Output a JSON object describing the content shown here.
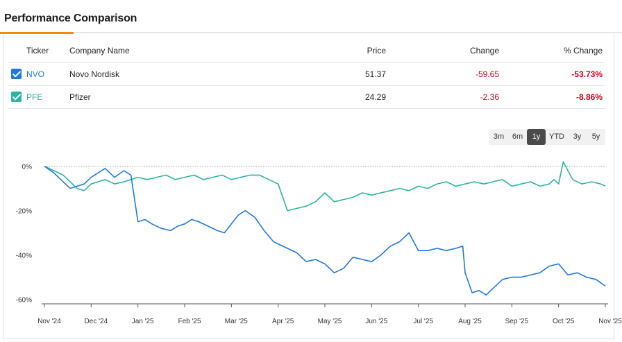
{
  "header": {
    "title": "Performance Comparison"
  },
  "table": {
    "columns": [
      "Ticker",
      "Company Name",
      "Price",
      "Change",
      "% Change"
    ],
    "rows": [
      {
        "ticker": "NVO",
        "name": "Novo Nordisk",
        "price": "51.37",
        "change": "-59.65",
        "pct_change": "-53.73%",
        "color": "#1f77e0",
        "checked": true
      },
      {
        "ticker": "PFE",
        "name": "Pfizer",
        "price": "24.29",
        "change": "-2.36",
        "pct_change": "-8.86%",
        "color": "#2bb3a3",
        "checked": true
      }
    ]
  },
  "ranges": {
    "options": [
      "3m",
      "6m",
      "1y",
      "YTD",
      "3y",
      "5y"
    ],
    "selected": "1y"
  },
  "chart_data": {
    "type": "line",
    "ylim": [
      -62,
      3
    ],
    "y_ticks": [
      "0%",
      "-20%",
      "-40%",
      "-60%"
    ],
    "y_tick_values": [
      0,
      -20,
      -40,
      -60
    ],
    "x_ticks": [
      "Nov '24",
      "Dec '24",
      "Jan '25",
      "Feb '25",
      "Mar '25",
      "Apr '25",
      "May '25",
      "Jun '25",
      "Jul '25",
      "Aug '25",
      "Sep '25",
      "Oct '25",
      "Nov '25"
    ],
    "series": [
      {
        "name": "NVO",
        "color": "#1f77e0",
        "x": [
          0.0,
          0.2,
          0.35,
          0.55,
          0.7,
          0.85,
          1.0,
          1.15,
          1.3,
          1.5,
          1.7,
          1.85,
          2.0,
          2.15,
          2.3,
          2.5,
          2.7,
          2.85,
          3.0,
          3.15,
          3.3,
          3.5,
          3.7,
          3.85,
          4.0,
          4.15,
          4.3,
          4.5,
          4.7,
          4.9,
          5.0,
          5.2,
          5.4,
          5.6,
          5.8,
          6.0,
          6.2,
          6.4,
          6.6,
          6.8,
          7.0,
          7.2,
          7.4,
          7.6,
          7.8,
          8.0,
          8.2,
          8.4,
          8.6,
          8.8,
          8.95,
          9.0,
          9.15,
          9.3,
          9.45,
          9.6,
          9.8,
          10.0,
          10.2,
          10.4,
          10.6,
          10.8,
          11.0,
          11.2,
          11.4,
          11.6,
          11.8,
          12.0
        ],
        "values": [
          0,
          -3,
          -6,
          -10,
          -9,
          -8,
          -5,
          -3,
          -1,
          -5,
          -2,
          -4,
          -25,
          -24,
          -26,
          -28,
          -29,
          -27,
          -26,
          -24,
          -25,
          -27,
          -29,
          -30,
          -26,
          -22,
          -20,
          -23,
          -29,
          -34,
          -35,
          -37,
          -39,
          -43,
          -42,
          -44,
          -48,
          -46,
          -41,
          -42,
          -43,
          -40,
          -36,
          -34,
          -30,
          -38,
          -38,
          -37,
          -38,
          -37,
          -36,
          -48,
          -57,
          -56,
          -58,
          -55,
          -51,
          -50,
          -50,
          -49,
          -48,
          -45,
          -44,
          -49,
          -48,
          -50,
          -51,
          -54
        ]
      },
      {
        "name": "PFE",
        "color": "#2bb3a3",
        "x": [
          0.0,
          0.2,
          0.4,
          0.55,
          0.7,
          0.85,
          1.0,
          1.15,
          1.3,
          1.5,
          1.7,
          1.85,
          2.0,
          2.2,
          2.4,
          2.6,
          2.8,
          3.0,
          3.2,
          3.4,
          3.6,
          3.8,
          4.0,
          4.2,
          4.4,
          4.6,
          4.8,
          5.0,
          5.1,
          5.2,
          5.4,
          5.6,
          5.8,
          6.0,
          6.2,
          6.4,
          6.6,
          6.8,
          7.0,
          7.2,
          7.4,
          7.6,
          7.8,
          8.0,
          8.2,
          8.4,
          8.6,
          8.8,
          9.0,
          9.2,
          9.4,
          9.6,
          9.8,
          10.0,
          10.2,
          10.4,
          10.6,
          10.8,
          10.9,
          11.0,
          11.1,
          11.3,
          11.5,
          11.7,
          11.9,
          12.0
        ],
        "values": [
          0,
          -2,
          -4,
          -7,
          -10,
          -11,
          -8,
          -7,
          -6,
          -8,
          -7,
          -6,
          -5,
          -6,
          -5,
          -4,
          -6,
          -5,
          -4,
          -6,
          -5,
          -4,
          -6,
          -5,
          -4,
          -4,
          -6,
          -8,
          -14,
          -20,
          -19,
          -18,
          -16,
          -12,
          -16,
          -15,
          -14,
          -12,
          -13,
          -12,
          -11,
          -10,
          -11,
          -9,
          -10,
          -8,
          -7,
          -9,
          -8,
          -7,
          -8,
          -7,
          -6,
          -9,
          -8,
          -7,
          -9,
          -8,
          -6,
          -8,
          2,
          -6,
          -8,
          -7,
          -8,
          -8.9
        ]
      }
    ]
  }
}
